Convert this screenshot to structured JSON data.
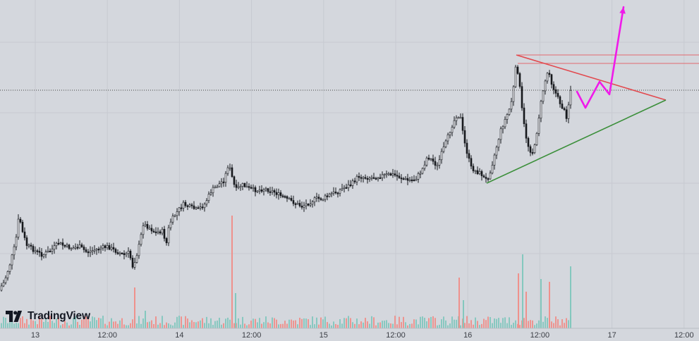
{
  "branding": {
    "logo_text": "TradingView"
  },
  "colors": {
    "background": "#d4d7dd",
    "grid": "#c7cad1",
    "candle_up": "#f4f6f9",
    "candle_down": "#16181d",
    "wick": "#16181d",
    "vol_up": "#7fc7bc",
    "vol_down": "#f08d87",
    "resistance_line": "#e2494e",
    "support_line": "#3b8f3a",
    "horizontal_levels": "#e26a6e",
    "projection_arrow": "#f01aea",
    "price_line": "#444444"
  },
  "chart_data": {
    "type": "candlestick",
    "title": "",
    "xlabel": "",
    "ylabel": "",
    "x_axis_ticks": [
      "13",
      "12:00",
      "14",
      "12:00",
      "15",
      "12:00",
      "16",
      "12:00",
      "17",
      "12:00"
    ],
    "grid": true,
    "volume_pane": true,
    "price_path": [
      [
        0,
        412
      ],
      [
        8,
        400
      ],
      [
        16,
        375
      ],
      [
        24,
        345
      ],
      [
        29,
        305
      ],
      [
        34,
        330
      ],
      [
        40,
        348
      ],
      [
        50,
        355
      ],
      [
        62,
        362
      ],
      [
        75,
        355
      ],
      [
        85,
        345
      ],
      [
        95,
        350
      ],
      [
        105,
        352
      ],
      [
        115,
        350
      ],
      [
        125,
        358
      ],
      [
        135,
        355
      ],
      [
        145,
        352
      ],
      [
        155,
        350
      ],
      [
        165,
        356
      ],
      [
        178,
        362
      ],
      [
        185,
        358
      ],
      [
        190,
        378
      ],
      [
        195,
        365
      ],
      [
        200,
        345
      ],
      [
        205,
        318
      ],
      [
        212,
        322
      ],
      [
        222,
        330
      ],
      [
        232,
        328
      ],
      [
        238,
        345
      ],
      [
        242,
        318
      ],
      [
        248,
        308
      ],
      [
        255,
        298
      ],
      [
        262,
        290
      ],
      [
        272,
        294
      ],
      [
        282,
        298
      ],
      [
        292,
        290
      ],
      [
        302,
        270
      ],
      [
        312,
        262
      ],
      [
        320,
        255
      ],
      [
        326,
        232
      ],
      [
        330,
        248
      ],
      [
        336,
        270
      ],
      [
        345,
        262
      ],
      [
        356,
        268
      ],
      [
        366,
        270
      ],
      [
        378,
        268
      ],
      [
        390,
        272
      ],
      [
        400,
        278
      ],
      [
        410,
        283
      ],
      [
        420,
        288
      ],
      [
        430,
        293
      ],
      [
        440,
        288
      ],
      [
        450,
        282
      ],
      [
        460,
        282
      ],
      [
        470,
        276
      ],
      [
        480,
        272
      ],
      [
        490,
        266
      ],
      [
        500,
        262
      ],
      [
        510,
        250
      ],
      [
        520,
        252
      ],
      [
        530,
        252
      ],
      [
        540,
        250
      ],
      [
        550,
        248
      ],
      [
        560,
        248
      ],
      [
        570,
        252
      ],
      [
        580,
        256
      ],
      [
        590,
        255
      ],
      [
        600,
        242
      ],
      [
        608,
        222
      ],
      [
        615,
        228
      ],
      [
        622,
        236
      ],
      [
        628,
        218
      ],
      [
        635,
        200
      ],
      [
        642,
        180
      ],
      [
        650,
        162
      ],
      [
        655,
        168
      ],
      [
        660,
        200
      ],
      [
        665,
        220
      ],
      [
        670,
        238
      ],
      [
        678,
        244
      ],
      [
        684,
        246
      ],
      [
        690,
        256
      ],
      [
        695,
        250
      ],
      [
        700,
        232
      ],
      [
        705,
        212
      ],
      [
        712,
        185
      ],
      [
        720,
        165
      ],
      [
        726,
        150
      ],
      [
        731,
        118
      ],
      [
        734,
        88
      ],
      [
        738,
        115
      ],
      [
        742,
        155
      ],
      [
        746,
        185
      ],
      [
        750,
        205
      ],
      [
        756,
        218
      ],
      [
        760,
        208
      ],
      [
        764,
        180
      ],
      [
        768,
        152
      ],
      [
        772,
        128
      ],
      [
        776,
        110
      ],
      [
        780,
        98
      ],
      [
        784,
        118
      ],
      [
        788,
        128
      ],
      [
        794,
        142
      ],
      [
        798,
        150
      ],
      [
        802,
        158
      ],
      [
        806,
        168
      ],
      [
        810,
        128
      ]
    ],
    "volume_spikes": [
      [
        190,
        58
      ],
      [
        205,
        25
      ],
      [
        328,
        160
      ],
      [
        333,
        50
      ],
      [
        650,
        72
      ],
      [
        656,
        40
      ],
      [
        734,
        78
      ],
      [
        740,
        105
      ],
      [
        745,
        52
      ],
      [
        766,
        70
      ],
      [
        778,
        66
      ],
      [
        808,
        88
      ]
    ],
    "drawings": {
      "resistance": {
        "x1": 732,
        "y1": 78,
        "x2": 944,
        "y2": 142
      },
      "support": {
        "x1": 690,
        "y1": 260,
        "x2": 944,
        "y2": 142
      },
      "horizontal_levels": [
        78,
        90
      ],
      "horizontal_levels_start_x": 734,
      "price_line_y": 128,
      "projection_path": [
        [
          818,
          130
        ],
        [
          830,
          153
        ],
        [
          850,
          116
        ],
        [
          864,
          134
        ],
        [
          884,
          10
        ]
      ]
    }
  }
}
